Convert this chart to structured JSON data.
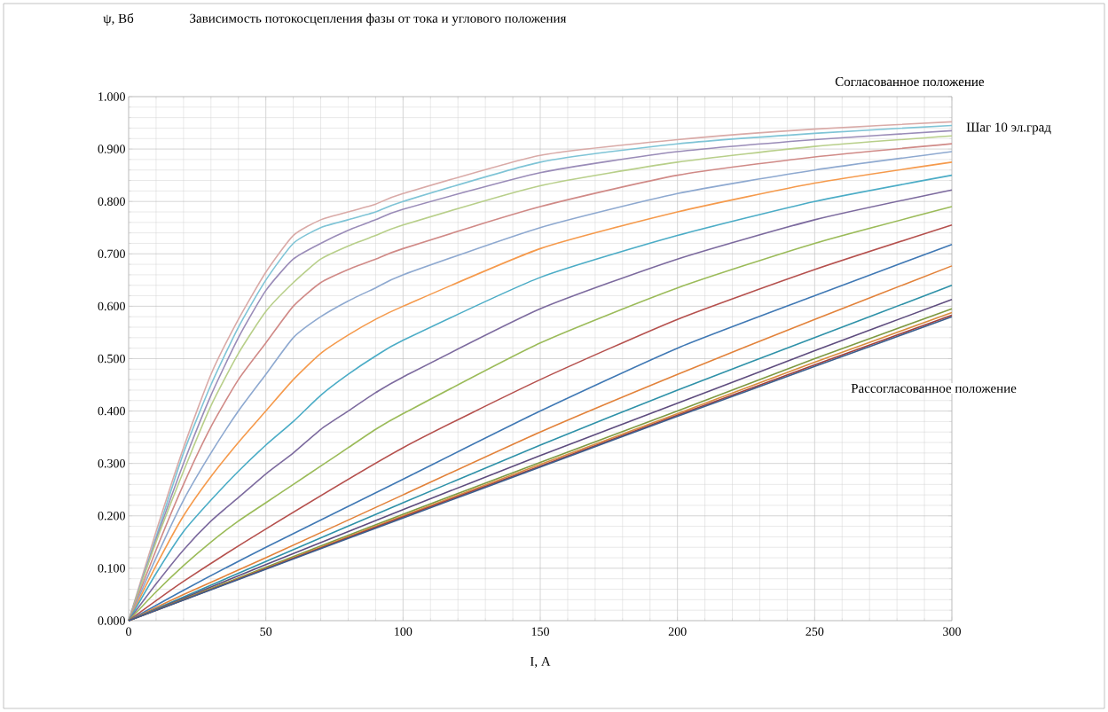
{
  "chart_data": {
    "type": "line",
    "title": "Зависимость потокосцепления фазы от тока и углового положения",
    "xlabel": "I, A",
    "annotations": [
      "ψ, Вб",
      "Согласованное положение",
      "Шаг  10 эл.град",
      "Рассогласованное  положение"
    ],
    "xlim": [
      0,
      300
    ],
    "xticks": [
      0,
      50,
      100,
      150,
      200,
      250,
      300
    ],
    "ylim": [
      0,
      1
    ],
    "yticks": [
      {
        "value": 0,
        "label": "0.000"
      },
      {
        "value": 0.1,
        "label": "0.100"
      },
      {
        "value": 0.2,
        "label": "0.200"
      },
      {
        "value": 0.3,
        "label": "0.300"
      },
      {
        "value": 0.4,
        "label": "0.400"
      },
      {
        "value": 0.5,
        "label": "0.500"
      },
      {
        "value": 0.6,
        "label": "0.600"
      },
      {
        "value": 0.7,
        "label": "0.700"
      },
      {
        "value": 0.8,
        "label": "0.800"
      },
      {
        "value": 0.9,
        "label": "0.900"
      },
      {
        "value": 1,
        "label": "1.000"
      }
    ],
    "grid": true,
    "marker": "none",
    "line_style": "solid",
    "series": [
      {
        "color": "#d9aaa7",
        "x": [
          0,
          10,
          20,
          30,
          40,
          50,
          60,
          70,
          80,
          90,
          100,
          150,
          200,
          250,
          300
        ],
        "values": [
          0,
          0.17,
          0.33,
          0.47,
          0.575,
          0.665,
          0.735,
          0.765,
          0.78,
          0.795,
          0.815,
          0.888,
          0.918,
          0.938,
          0.952
        ]
      },
      {
        "color": "#7fc4d6",
        "x": [
          0,
          10,
          20,
          30,
          40,
          50,
          60,
          70,
          80,
          90,
          100,
          150,
          200,
          250,
          300
        ],
        "values": [
          0,
          0.16,
          0.32,
          0.45,
          0.56,
          0.65,
          0.72,
          0.75,
          0.765,
          0.78,
          0.8,
          0.875,
          0.91,
          0.93,
          0.945
        ]
      },
      {
        "color": "#9a8cb8",
        "x": [
          0,
          10,
          20,
          30,
          40,
          50,
          60,
          70,
          80,
          90,
          100,
          150,
          200,
          250,
          300
        ],
        "values": [
          0,
          0.155,
          0.3,
          0.43,
          0.54,
          0.63,
          0.69,
          0.72,
          0.745,
          0.765,
          0.785,
          0.855,
          0.895,
          0.918,
          0.935
        ]
      },
      {
        "color": "#b8cf8a",
        "x": [
          0,
          10,
          20,
          30,
          40,
          50,
          60,
          70,
          80,
          90,
          100,
          150,
          200,
          250,
          300
        ],
        "values": [
          0,
          0.15,
          0.285,
          0.41,
          0.51,
          0.59,
          0.645,
          0.69,
          0.715,
          0.735,
          0.755,
          0.83,
          0.875,
          0.905,
          0.925
        ]
      },
      {
        "color": "#d08a87",
        "x": [
          0,
          10,
          20,
          30,
          40,
          50,
          60,
          70,
          80,
          90,
          100,
          150,
          200,
          250,
          300
        ],
        "values": [
          0,
          0.135,
          0.26,
          0.37,
          0.46,
          0.53,
          0.6,
          0.645,
          0.67,
          0.69,
          0.71,
          0.79,
          0.85,
          0.885,
          0.91
        ]
      },
      {
        "color": "#8ea9d0",
        "x": [
          0,
          10,
          20,
          30,
          40,
          50,
          60,
          70,
          80,
          90,
          100,
          150,
          200,
          250,
          300
        ],
        "values": [
          0,
          0.12,
          0.23,
          0.32,
          0.4,
          0.47,
          0.54,
          0.58,
          0.61,
          0.635,
          0.66,
          0.75,
          0.815,
          0.86,
          0.895
        ]
      },
      {
        "color": "#f59a4c",
        "x": [
          0,
          10,
          20,
          30,
          40,
          50,
          60,
          70,
          80,
          90,
          100,
          150,
          200,
          250,
          300
        ],
        "values": [
          0,
          0.105,
          0.2,
          0.275,
          0.34,
          0.4,
          0.46,
          0.51,
          0.545,
          0.575,
          0.6,
          0.71,
          0.78,
          0.835,
          0.875
        ]
      },
      {
        "color": "#4bacc6",
        "x": [
          0,
          10,
          20,
          30,
          40,
          50,
          60,
          70,
          80,
          90,
          100,
          150,
          200,
          250,
          300
        ],
        "values": [
          0,
          0.09,
          0.17,
          0.23,
          0.285,
          0.335,
          0.38,
          0.43,
          0.47,
          0.505,
          0.535,
          0.655,
          0.735,
          0.8,
          0.85
        ]
      },
      {
        "color": "#7c6a9e",
        "x": [
          0,
          10,
          20,
          30,
          40,
          50,
          60,
          70,
          80,
          90,
          100,
          150,
          200,
          250,
          300
        ],
        "values": [
          0,
          0.07,
          0.135,
          0.19,
          0.235,
          0.28,
          0.32,
          0.365,
          0.4,
          0.435,
          0.465,
          0.595,
          0.69,
          0.765,
          0.822
        ]
      },
      {
        "color": "#9bbb59",
        "x": [
          0,
          10,
          20,
          30,
          40,
          50,
          60,
          70,
          80,
          90,
          100,
          150,
          200,
          250,
          300
        ],
        "values": [
          0,
          0.055,
          0.105,
          0.15,
          0.19,
          0.225,
          0.26,
          0.295,
          0.33,
          0.365,
          0.395,
          0.53,
          0.635,
          0.72,
          0.79
        ]
      },
      {
        "color": "#b5504d",
        "x": [
          0,
          20,
          50,
          100,
          150,
          200,
          250,
          300
        ],
        "values": [
          0,
          0.075,
          0.175,
          0.33,
          0.46,
          0.575,
          0.67,
          0.755
        ]
      },
      {
        "color": "#3f78b4",
        "x": [
          0,
          20,
          50,
          100,
          150,
          200,
          250,
          300
        ],
        "values": [
          0,
          0.058,
          0.14,
          0.27,
          0.4,
          0.52,
          0.62,
          0.718
        ]
      },
      {
        "color": "#e2823a",
        "x": [
          0,
          20,
          50,
          100,
          150,
          200,
          250,
          300
        ],
        "values": [
          0,
          0.05,
          0.12,
          0.24,
          0.36,
          0.47,
          0.575,
          0.677
        ]
      },
      {
        "color": "#2e91a8",
        "x": [
          0,
          50,
          100,
          150,
          200,
          250,
          300
        ],
        "values": [
          0,
          0.113,
          0.225,
          0.335,
          0.44,
          0.54,
          0.64
        ]
      },
      {
        "color": "#5e4c7e",
        "x": [
          0,
          50,
          100,
          150,
          200,
          250,
          300
        ],
        "values": [
          0,
          0.107,
          0.212,
          0.315,
          0.415,
          0.515,
          0.613
        ]
      },
      {
        "color": "#7e9a42",
        "x": [
          0,
          50,
          100,
          150,
          200,
          250,
          300
        ],
        "values": [
          0,
          0.102,
          0.203,
          0.302,
          0.4,
          0.5,
          0.595
        ]
      },
      {
        "color": "#d98c3e",
        "x": [
          0,
          50,
          100,
          150,
          200,
          250,
          300
        ],
        "values": [
          0,
          0.1,
          0.2,
          0.298,
          0.395,
          0.493,
          0.588
        ]
      },
      {
        "color": "#a03e3b",
        "x": [
          0,
          50,
          100,
          150,
          200,
          250,
          300
        ],
        "values": [
          0,
          0.099,
          0.198,
          0.295,
          0.392,
          0.488,
          0.583
        ]
      },
      {
        "color": "#3c5f8e",
        "x": [
          0,
          50,
          100,
          150,
          200,
          250,
          300
        ],
        "values": [
          0,
          0.098,
          0.196,
          0.293,
          0.39,
          0.485,
          0.58
        ]
      }
    ]
  }
}
